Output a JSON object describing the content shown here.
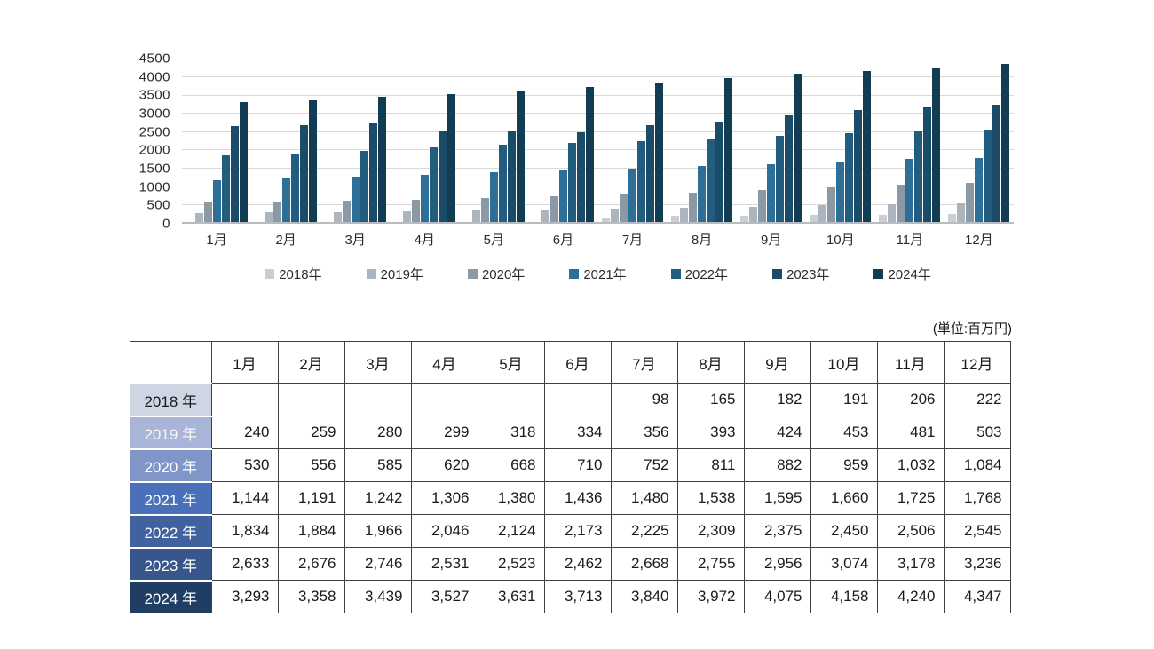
{
  "unit_label": "(単位:百万円)",
  "colors": {
    "gridline": "#d9d9d9",
    "axis_line": "#b8bcc1",
    "table_border": "#404040"
  },
  "chart_data": {
    "type": "bar",
    "title": "",
    "xlabel": "",
    "ylabel": "",
    "categories": [
      "1月",
      "2月",
      "3月",
      "4月",
      "5月",
      "6月",
      "7月",
      "8月",
      "9月",
      "10月",
      "11月",
      "12月"
    ],
    "ylim": [
      0,
      4500
    ],
    "ytick_step": 500,
    "grid": true,
    "legend_position": "bottom",
    "series": [
      {
        "name": "2018年",
        "color": "#c9ced5",
        "values": [
          null,
          null,
          null,
          null,
          null,
          null,
          98,
          165,
          182,
          191,
          206,
          222
        ]
      },
      {
        "name": "2019年",
        "color": "#abb4bf",
        "values": [
          240,
          259,
          280,
          299,
          318,
          334,
          356,
          393,
          424,
          453,
          481,
          503
        ]
      },
      {
        "name": "2020年",
        "color": "#8b99a7",
        "values": [
          530,
          556,
          585,
          620,
          668,
          710,
          752,
          811,
          882,
          959,
          1032,
          1084
        ]
      },
      {
        "name": "2021年",
        "color": "#2d6f96",
        "values": [
          1144,
          1191,
          1242,
          1306,
          1380,
          1436,
          1480,
          1538,
          1595,
          1660,
          1725,
          1768
        ]
      },
      {
        "name": "2022年",
        "color": "#225d7f",
        "values": [
          1834,
          1884,
          1966,
          2046,
          2124,
          2173,
          2225,
          2309,
          2375,
          2450,
          2506,
          2545
        ]
      },
      {
        "name": "2023年",
        "color": "#1a4b68",
        "values": [
          2633,
          2676,
          2746,
          2531,
          2523,
          2462,
          2668,
          2755,
          2956,
          3074,
          3178,
          3236
        ]
      },
      {
        "name": "2024年",
        "color": "#123c54",
        "values": [
          3293,
          3358,
          3439,
          3527,
          3631,
          3713,
          3840,
          3972,
          4075,
          4158,
          4240,
          4347
        ]
      }
    ]
  },
  "table": {
    "corner_label": "",
    "column_headers": [
      "1月",
      "2月",
      "3月",
      "4月",
      "5月",
      "6月",
      "7月",
      "8月",
      "9月",
      "10月",
      "11月",
      "12月"
    ],
    "rows": [
      {
        "label": "2018 年",
        "bg": "#cfd5e3",
        "fg": "#1a1a1a",
        "values": [
          "",
          "",
          "",
          "",
          "",
          "",
          "98",
          "165",
          "182",
          "191",
          "206",
          "222"
        ]
      },
      {
        "label": "2019 年",
        "bg": "#a9b5d8",
        "fg": "#f7f7f7",
        "values": [
          "240",
          "259",
          "280",
          "299",
          "318",
          "334",
          "356",
          "393",
          "424",
          "453",
          "481",
          "503"
        ]
      },
      {
        "label": "2020 年",
        "bg": "#8096c9",
        "fg": "#ffffff",
        "values": [
          "530",
          "556",
          "585",
          "620",
          "668",
          "710",
          "752",
          "811",
          "882",
          "959",
          "1,032",
          "1,084"
        ]
      },
      {
        "label": "2021 年",
        "bg": "#4a70b9",
        "fg": "#ffffff",
        "values": [
          "1,144",
          "1,191",
          "1,242",
          "1,306",
          "1,380",
          "1,436",
          "1,480",
          "1,538",
          "1,595",
          "1,660",
          "1,725",
          "1,768"
        ]
      },
      {
        "label": "2022 年",
        "bg": "#40629f",
        "fg": "#ffffff",
        "values": [
          "1,834",
          "1,884",
          "1,966",
          "2,046",
          "2,124",
          "2,173",
          "2,225",
          "2,309",
          "2,375",
          "2,450",
          "2,506",
          "2,545"
        ]
      },
      {
        "label": "2023 年",
        "bg": "#37568b",
        "fg": "#ffffff",
        "values": [
          "2,633",
          "2,676",
          "2,746",
          "2,531",
          "2,523",
          "2,462",
          "2,668",
          "2,755",
          "2,956",
          "3,074",
          "3,178",
          "3,236"
        ]
      },
      {
        "label": "2024 年",
        "bg": "#203e63",
        "fg": "#ffffff",
        "values": [
          "3,293",
          "3,358",
          "3,439",
          "3,527",
          "3,631",
          "3,713",
          "3,840",
          "3,972",
          "4,075",
          "4,158",
          "4,240",
          "4,347"
        ]
      }
    ]
  }
}
